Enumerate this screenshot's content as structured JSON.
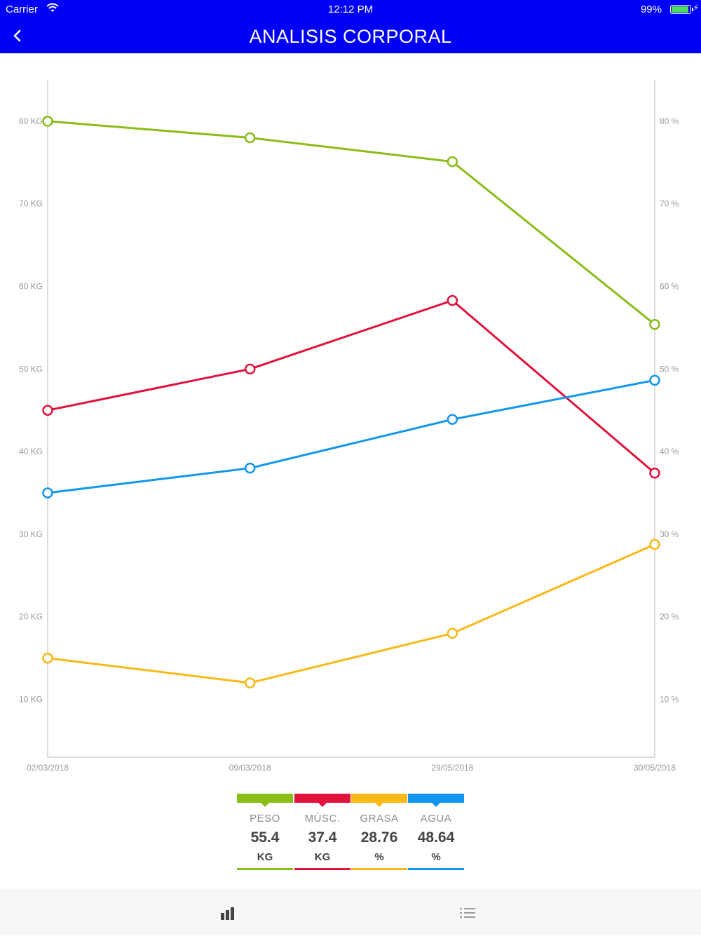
{
  "status_bar": {
    "carrier": "Carrier",
    "time": "12:12 PM",
    "battery": "99%"
  },
  "nav": {
    "title": "ANALISIS CORPORAL",
    "back_icon": "chevron-left-icon"
  },
  "colors": {
    "nav_bg": "#0000f5",
    "peso": "#8abd18",
    "musc": "#e2113e",
    "grasa": "#f8b919",
    "agua": "#1296ee",
    "axis": "#cfcfcf",
    "tick_text": "#9a9a9a"
  },
  "chart_data": {
    "type": "line",
    "x": [
      "02/03/2018",
      "09/03/2018",
      "29/05/2018",
      "30/05/2018"
    ],
    "ylim": [
      3,
      85
    ],
    "grid": false,
    "left_axis_ticks": [
      "10 KG",
      "20 KG",
      "30 KG",
      "40 KG",
      "50 KG",
      "60 KG",
      "70 KG",
      "80 KG"
    ],
    "right_axis_ticks": [
      "10 %",
      "20 %",
      "30 %",
      "40 %",
      "50 %",
      "60 %",
      "70 %",
      "80 %"
    ],
    "tick_values": [
      10,
      20,
      30,
      40,
      50,
      60,
      70,
      80
    ],
    "series": [
      {
        "name": "PESO",
        "unit": "KG",
        "color": "#8abd18",
        "values": [
          80,
          78,
          75.1,
          55.4
        ]
      },
      {
        "name": "MÚSC.",
        "unit": "KG",
        "color": "#e2113e",
        "values": [
          45,
          50,
          58.3,
          37.4
        ]
      },
      {
        "name": "GRASA",
        "unit": "%",
        "color": "#f8b919",
        "values": [
          15,
          12,
          18,
          28.76
        ]
      },
      {
        "name": "AGUA",
        "unit": "%",
        "color": "#1296ee",
        "values": [
          35,
          38,
          43.9,
          48.64
        ]
      }
    ]
  },
  "legend": [
    {
      "name": "PESO",
      "value": "55.4",
      "unit": "KG",
      "color": "#8abd18"
    },
    {
      "name": "MÚSC.",
      "value": "37.4",
      "unit": "KG",
      "color": "#e2113e"
    },
    {
      "name": "GRASA",
      "value": "28.76",
      "unit": "%",
      "color": "#f8b919"
    },
    {
      "name": "AGUA",
      "value": "48.64",
      "unit": "%",
      "color": "#1296ee"
    }
  ],
  "tabs": [
    {
      "icon": "bar-chart-icon",
      "active": true
    },
    {
      "icon": "list-icon",
      "active": false
    }
  ]
}
